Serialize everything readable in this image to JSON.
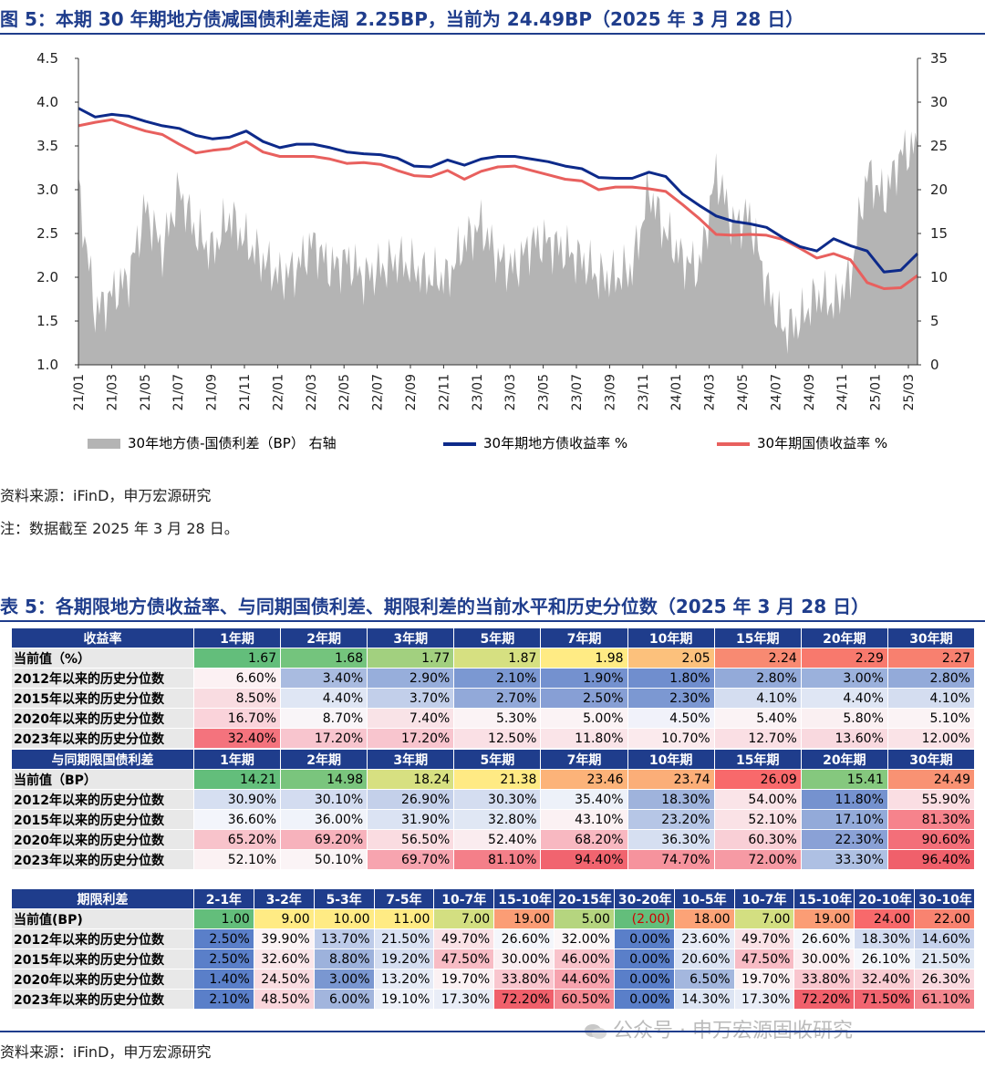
{
  "figure": {
    "title": "图 5：本期 30 年期地方债减国债利差走阔 2.25BP，当前为 24.49BP（2025 年 3 月 28 日）",
    "source": "资料来源：iFinD，申万宏源研究",
    "note": "注：数据截至 2025 年 3 月 28 日。",
    "legend": [
      "30年地方债-国债利差（BP） 右轴",
      "30年期地方债收益率 %",
      "30年期国债收益率 %"
    ]
  },
  "chart_data": {
    "type": "line",
    "x_ticks": [
      "21/01",
      "21/03",
      "21/05",
      "21/07",
      "21/09",
      "21/11",
      "22/01",
      "22/03",
      "22/05",
      "22/07",
      "22/09",
      "22/11",
      "23/01",
      "23/03",
      "23/05",
      "23/07",
      "23/09",
      "23/11",
      "24/01",
      "24/03",
      "24/05",
      "24/07",
      "24/09",
      "24/11",
      "25/01",
      "25/03"
    ],
    "y_left_ticks": [
      "1.0",
      "1.5",
      "2.0",
      "2.5",
      "3.0",
      "3.5",
      "4.0",
      "4.5"
    ],
    "y_right_ticks": [
      "0",
      "5",
      "10",
      "15",
      "20",
      "25",
      "30",
      "35"
    ],
    "y_left_range": [
      1.0,
      4.5
    ],
    "y_right_range": [
      0,
      35
    ],
    "colors": {
      "spread": "#b4b4b4",
      "local": "#0d2a8a",
      "treasury": "#e8605e"
    },
    "series": [
      {
        "name": "30年地方债-国债利差（BP） 右轴",
        "axis": "right",
        "type": "area",
        "x": [
          "21/01",
          "21/02",
          "21/03",
          "21/04",
          "21/05",
          "21/06",
          "21/07",
          "21/08",
          "21/09",
          "21/10",
          "21/11",
          "21/12",
          "22/01",
          "22/02",
          "22/03",
          "22/04",
          "22/05",
          "22/06",
          "22/07",
          "22/08",
          "22/09",
          "22/10",
          "22/11",
          "22/12",
          "23/01",
          "23/02",
          "23/03",
          "23/04",
          "23/05",
          "23/06",
          "23/07",
          "23/08",
          "23/09",
          "23/10",
          "23/11",
          "23/12",
          "24/01",
          "24/02",
          "24/03",
          "24/04",
          "24/05",
          "24/06",
          "24/07",
          "24/08",
          "24/09",
          "24/10",
          "24/11",
          "24/12",
          "25/01",
          "25/02",
          "25/03"
        ],
        "values": [
          20,
          6,
          8,
          10,
          18,
          13,
          20,
          15,
          13,
          17,
          14,
          12,
          10,
          11,
          14,
          11,
          12,
          10,
          11,
          12,
          11,
          10,
          10,
          14,
          16,
          12,
          11,
          14,
          14,
          13,
          12,
          10,
          10,
          11,
          20,
          15,
          12,
          11,
          22,
          16,
          17,
          9,
          4,
          5,
          8,
          7,
          10,
          22,
          19,
          24,
          25
        ]
      },
      {
        "name": "30年期地方债收益率 %",
        "axis": "left",
        "x": [
          "21/01",
          "21/02",
          "21/03",
          "21/04",
          "21/05",
          "21/06",
          "21/07",
          "21/08",
          "21/09",
          "21/10",
          "21/11",
          "21/12",
          "22/01",
          "22/02",
          "22/03",
          "22/04",
          "22/05",
          "22/06",
          "22/07",
          "22/08",
          "22/09",
          "22/10",
          "22/11",
          "22/12",
          "23/01",
          "23/02",
          "23/03",
          "23/04",
          "23/05",
          "23/06",
          "23/07",
          "23/08",
          "23/09",
          "23/10",
          "23/11",
          "23/12",
          "24/01",
          "24/02",
          "24/03",
          "24/04",
          "24/05",
          "24/06",
          "24/07",
          "24/08",
          "24/09",
          "24/10",
          "24/11",
          "24/12",
          "25/01",
          "25/02",
          "25/03"
        ],
        "values": [
          3.93,
          3.83,
          3.86,
          3.84,
          3.78,
          3.73,
          3.7,
          3.62,
          3.58,
          3.6,
          3.67,
          3.55,
          3.48,
          3.52,
          3.52,
          3.48,
          3.43,
          3.41,
          3.4,
          3.36,
          3.27,
          3.26,
          3.34,
          3.28,
          3.35,
          3.38,
          3.38,
          3.35,
          3.32,
          3.27,
          3.24,
          3.14,
          3.13,
          3.13,
          3.2,
          3.15,
          2.95,
          2.82,
          2.7,
          2.64,
          2.61,
          2.57,
          2.45,
          2.35,
          2.3,
          2.44,
          2.36,
          2.3,
          2.06,
          2.08,
          2.27
        ]
      },
      {
        "name": "30年期国债收益率 %",
        "axis": "left",
        "x": [
          "21/01",
          "21/02",
          "21/03",
          "21/04",
          "21/05",
          "21/06",
          "21/07",
          "21/08",
          "21/09",
          "21/10",
          "21/11",
          "21/12",
          "22/01",
          "22/02",
          "22/03",
          "22/04",
          "22/05",
          "22/06",
          "22/07",
          "22/08",
          "22/09",
          "22/10",
          "22/11",
          "22/12",
          "23/01",
          "23/02",
          "23/03",
          "23/04",
          "23/05",
          "23/06",
          "23/07",
          "23/08",
          "23/09",
          "23/10",
          "23/11",
          "23/12",
          "24/01",
          "24/02",
          "24/03",
          "24/04",
          "24/05",
          "24/06",
          "24/07",
          "24/08",
          "24/09",
          "24/10",
          "24/11",
          "24/12",
          "25/01",
          "25/02",
          "25/03"
        ],
        "values": [
          3.73,
          3.77,
          3.8,
          3.73,
          3.67,
          3.63,
          3.52,
          3.42,
          3.45,
          3.47,
          3.55,
          3.43,
          3.38,
          3.38,
          3.38,
          3.35,
          3.3,
          3.31,
          3.29,
          3.22,
          3.16,
          3.15,
          3.22,
          3.12,
          3.21,
          3.26,
          3.27,
          3.22,
          3.17,
          3.12,
          3.1,
          3.0,
          3.03,
          3.03,
          3.01,
          2.98,
          2.83,
          2.67,
          2.49,
          2.48,
          2.49,
          2.48,
          2.43,
          2.33,
          2.22,
          2.27,
          2.2,
          1.94,
          1.87,
          1.88,
          2.02
        ]
      }
    ]
  },
  "table": {
    "title": "表 5：各期限地方债收益率、与同期国债利差、期限利差的当前水平和历史分位数（2025 年 3 月 28 日）",
    "source": "资料来源：iFinD，申万宏源研究",
    "blocks": [
      {
        "header": [
          "收益率",
          "1年期",
          "2年期",
          "3年期",
          "5年期",
          "7年期",
          "10年期",
          "15年期",
          "20年期",
          "30年期"
        ],
        "rows": [
          {
            "label": "当前值（%）",
            "cells": [
              "1.67",
              "1.68",
              "1.77",
              "1.87",
              "1.98",
              "2.05",
              "2.24",
              "2.29",
              "2.27"
            ],
            "colors": [
              "#63be7b",
              "#74c47d",
              "#a2d07f",
              "#d6e081",
              "#ffeb84",
              "#fcc17c",
              "#f88a72",
              "#f8796d",
              "#f8806f"
            ]
          },
          {
            "label": "2012年以来的历史分位数",
            "cells": [
              "6.60%",
              "3.40%",
              "2.90%",
              "2.10%",
              "1.90%",
              "1.80%",
              "2.80%",
              "3.00%",
              "2.80%"
            ],
            "colors": [
              "#fcf1f3",
              "#a9bbe0",
              "#97aedb",
              "#7b98d2",
              "#7491cf",
              "#708ece",
              "#93aad9",
              "#9bb1dc",
              "#93aad9"
            ]
          },
          {
            "label": "2015年以来的历史分位数",
            "cells": [
              "8.50%",
              "4.40%",
              "3.70%",
              "2.70%",
              "2.50%",
              "2.30%",
              "4.10%",
              "4.40%",
              "4.10%"
            ],
            "colors": [
              "#f9dce1",
              "#dfe6f4",
              "#c2cfea",
              "#92a9d9",
              "#879fd5",
              "#7c98d2",
              "#d4ddf0",
              "#dfe6f4",
              "#d4ddf0"
            ]
          },
          {
            "label": "2020年以来的历史分位数",
            "cells": [
              "16.70%",
              "8.70%",
              "7.40%",
              "5.30%",
              "5.00%",
              "4.50%",
              "5.40%",
              "5.80%",
              "5.10%"
            ],
            "colors": [
              "#fad3da",
              "#f9f5f8",
              "#f9e3e7",
              "#fbf3f5",
              "#fbf3f5",
              "#f1f2fa",
              "#fbf3f5",
              "#faf0f2",
              "#fbf3f5"
            ]
          },
          {
            "label": "2023年以来的历史分位数",
            "cells": [
              "32.40%",
              "17.20%",
              "17.20%",
              "12.50%",
              "11.80%",
              "10.70%",
              "12.70%",
              "13.60%",
              "12.00%"
            ],
            "colors": [
              "#f4737d",
              "#f8c5ce",
              "#f8c5ce",
              "#fae0e5",
              "#fae4e8",
              "#fbeaed",
              "#fadfe4",
              "#f9d9df",
              "#fae3e7"
            ]
          }
        ]
      },
      {
        "header": [
          "与同期限国债利差",
          "1年期",
          "2年期",
          "3年期",
          "5年期",
          "7年期",
          "10年期",
          "15年期",
          "20年期",
          "30年期"
        ],
        "rows": [
          {
            "label": "当前值（BP）",
            "cells": [
              "14.21",
              "14.98",
              "18.24",
              "21.38",
              "23.46",
              "23.74",
              "26.09",
              "15.41",
              "24.49"
            ],
            "colors": [
              "#63be7b",
              "#7ac57d",
              "#d7e081",
              "#ffea84",
              "#fcb379",
              "#fbae78",
              "#f8696b",
              "#85c87e",
              "#f99273"
            ]
          },
          {
            "label": "2012年以来的历史分位数",
            "cells": [
              "30.90%",
              "30.10%",
              "26.90%",
              "30.30%",
              "35.40%",
              "18.30%",
              "54.00%",
              "11.80%",
              "55.90%"
            ],
            "colors": [
              "#d6dff1",
              "#d3dcf0",
              "#c4d0ea",
              "#d4ddf0",
              "#edf1f9",
              "#9fb3dc",
              "#fae4e8",
              "#7592cf",
              "#fadee3"
            ]
          },
          {
            "label": "2015年以来的历史分位数",
            "cells": [
              "36.60%",
              "36.00%",
              "31.90%",
              "32.80%",
              "43.10%",
              "23.20%",
              "52.10%",
              "17.10%",
              "81.30%"
            ],
            "colors": [
              "#f3f5fb",
              "#f0f3fa",
              "#dbe3f3",
              "#e0e7f4",
              "#fbf1f3",
              "#b6c6e6",
              "#fae2e6",
              "#93aad9",
              "#f6838c"
            ]
          },
          {
            "label": "2020年以来的历史分位数",
            "cells": [
              "65.20%",
              "69.20%",
              "56.50%",
              "52.40%",
              "68.20%",
              "36.30%",
              "60.30%",
              "22.30%",
              "90.60%"
            ],
            "colors": [
              "#f8c3cb",
              "#f7b2bc",
              "#fadce1",
              "#faecef",
              "#f8b8c1",
              "#d6dff1",
              "#f9cfd6",
              "#8aa1d6",
              "#f36f79"
            ]
          },
          {
            "label": "2023年以来的历史分位数",
            "cells": [
              "52.10%",
              "50.10%",
              "69.70%",
              "81.10%",
              "94.40%",
              "74.70%",
              "72.00%",
              "33.30%",
              "96.40%"
            ],
            "colors": [
              "#fbf1f3",
              "#fbf4f6",
              "#f7a4af",
              "#f47f89",
              "#f1646f",
              "#f6939d",
              "#f69aa4",
              "#aec0e3",
              "#f0606b"
            ]
          }
        ]
      },
      {
        "header": [
          "期限利差",
          "2-1年",
          "3-2年",
          "5-3年",
          "7-5年",
          "10-7年",
          "15-10年",
          "20-15年",
          "30-20年",
          "10-5年",
          "10-7年",
          "15-10年",
          "20-10年",
          "30-10年"
        ],
        "rows": [
          {
            "label": "当前值(BP)",
            "cells": [
              "1.00",
              "9.00",
              "10.00",
              "11.00",
              "7.00",
              "19.00",
              "5.00",
              "(2.00)",
              "18.00",
              "7.00",
              "19.00",
              "24.00",
              "22.00"
            ],
            "colors": [
              "#63be7b",
              "#ffeb84",
              "#ffeb84",
              "#ffeb84",
              "#d3df81",
              "#fb9d75",
              "#b5d57f",
              "#63be7b",
              "#fca377",
              "#d3df81",
              "#fb9d75",
              "#f8696b",
              "#f98370"
            ],
            "red": [
              false,
              false,
              false,
              false,
              false,
              false,
              false,
              true,
              false,
              false,
              false,
              false,
              false
            ]
          },
          {
            "label": "2012年以来的历史分位数",
            "cells": [
              "2.50%",
              "39.90%",
              "13.70%",
              "21.50%",
              "49.70%",
              "26.60%",
              "32.00%",
              "0.00%",
              "23.60%",
              "49.70%",
              "26.60%",
              "18.30%",
              "14.60%"
            ],
            "colors": [
              "#5a7fc9",
              "#fbf3f5",
              "#bdcbe9",
              "#dae2f3",
              "#fae2e6",
              "#f4f6fb",
              "#fcf6f7",
              "#5a7fc9",
              "#e7ecf7",
              "#fae2e6",
              "#f4f6fb",
              "#d2dbf0",
              "#c6d2ec"
            ]
          },
          {
            "label": "2015年以来的历史分位数",
            "cells": [
              "2.50%",
              "32.60%",
              "8.80%",
              "19.20%",
              "47.50%",
              "30.00%",
              "46.00%",
              "0.00%",
              "20.60%",
              "47.50%",
              "30.00%",
              "26.10%",
              "21.50%"
            ],
            "colors": [
              "#5a7fc9",
              "#fae6ea",
              "#9db2dc",
              "#d4ddf0",
              "#f8bcc5",
              "#fbeef1",
              "#f9c3cb",
              "#5a7fc9",
              "#dbe3f3",
              "#f8bcc5",
              "#fbeef1",
              "#f4f6fb",
              "#e0e7f4"
            ]
          },
          {
            "label": "2020年以来的历史分位数",
            "cells": [
              "1.40%",
              "24.50%",
              "3.00%",
              "13.20%",
              "19.70%",
              "33.80%",
              "44.60%",
              "0.00%",
              "6.50%",
              "19.70%",
              "33.80%",
              "32.40%",
              "26.30%"
            ],
            "colors": [
              "#5a7fc9",
              "#f9dce1",
              "#7a97d1",
              "#e6ebf6",
              "#fbf1f3",
              "#f9c6ce",
              "#f7a3ae",
              "#5a7fc9",
              "#a4b7de",
              "#fbf1f3",
              "#f9c6ce",
              "#f9cbd2",
              "#f9d9df"
            ]
          },
          {
            "label": "2023年以来的历史分位数",
            "cells": [
              "2.10%",
              "48.50%",
              "6.00%",
              "19.10%",
              "17.30%",
              "72.20%",
              "60.50%",
              "0.00%",
              "14.30%",
              "17.30%",
              "72.20%",
              "71.50%",
              "61.10%"
            ],
            "colors": [
              "#5a7fc9",
              "#f9d5db",
              "#a2b5dd",
              "#eef1f9",
              "#e9edf7",
              "#f0606b",
              "#f48992",
              "#5a7fc9",
              "#dce4f3",
              "#e9edf7",
              "#f0606b",
              "#f16570",
              "#f4878f"
            ]
          }
        ]
      }
    ]
  },
  "watermark": "公众号 · 申万宏源固收研究"
}
